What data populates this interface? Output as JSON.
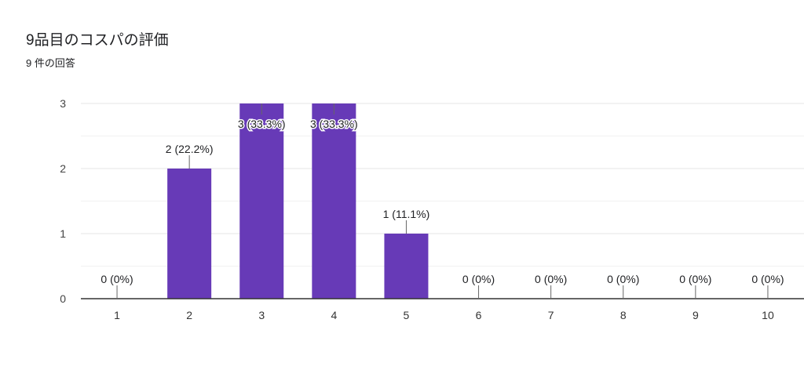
{
  "title": "9品目のコスパの評価",
  "subtitle": "9 件の回答",
  "colors": {
    "bar": "#673ab7",
    "grid": "#e8e8e8",
    "axis": "#333333",
    "text": "#202124"
  },
  "chart_data": {
    "type": "bar",
    "categories": [
      "1",
      "2",
      "3",
      "4",
      "5",
      "6",
      "7",
      "8",
      "9",
      "10"
    ],
    "values": [
      0,
      2,
      3,
      3,
      1,
      0,
      0,
      0,
      0,
      0
    ],
    "data_labels": [
      "0 (0%)",
      "2 (22.2%)",
      "3 (33.3%)",
      "3 (33.3%)",
      "1 (11.1%)",
      "0 (0%)",
      "0 (0%)",
      "0 (0%)",
      "0 (0%)",
      "0 (0%)"
    ],
    "yticks": [
      "0",
      "1",
      "2",
      "3"
    ],
    "ylim": [
      0,
      3
    ],
    "grid": true,
    "legend": "none"
  }
}
